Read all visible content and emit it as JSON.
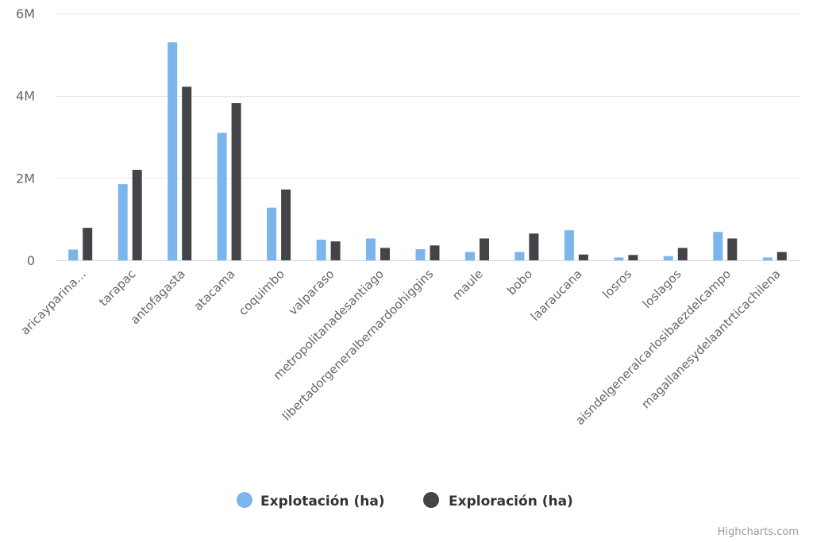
{
  "chart_data": {
    "type": "bar",
    "categories": [
      "aricayparina…",
      "tarapac",
      "antofagasta",
      "atacama",
      "coquimbo",
      "valparaso",
      "metropolitanadesantiago",
      "libertadorgeneralbernardoohiggins",
      "maule",
      "bobo",
      "laaraucana",
      "losros",
      "loslagos",
      "aisndelgeneralcarlosibaezdelcampo",
      "magallanesydelaantrticachilena"
    ],
    "series": [
      {
        "name": "Explotación (ha)",
        "color": "#7cb5ec",
        "values": [
          260000,
          1850000,
          5300000,
          3100000,
          1280000,
          500000,
          530000,
          270000,
          200000,
          200000,
          730000,
          70000,
          100000,
          690000,
          70000
        ]
      },
      {
        "name": "Exploración (ha)",
        "color": "#434348",
        "values": [
          790000,
          2200000,
          4220000,
          3820000,
          1720000,
          460000,
          300000,
          360000,
          530000,
          650000,
          140000,
          130000,
          300000,
          530000,
          200000
        ]
      }
    ],
    "ylim": [
      0,
      6000000
    ],
    "yticks": [
      0,
      2000000,
      4000000,
      6000000
    ],
    "ytick_labels": [
      "0",
      "2M",
      "4M",
      "6M"
    ],
    "grid": true,
    "legend_position": "bottom-center",
    "title": "",
    "xlabel": "",
    "ylabel": ""
  },
  "credits": "Highcharts.com",
  "colors": {
    "grid": "#e6e6e6",
    "axis_line": "#ccd6eb",
    "text": "#666666"
  }
}
